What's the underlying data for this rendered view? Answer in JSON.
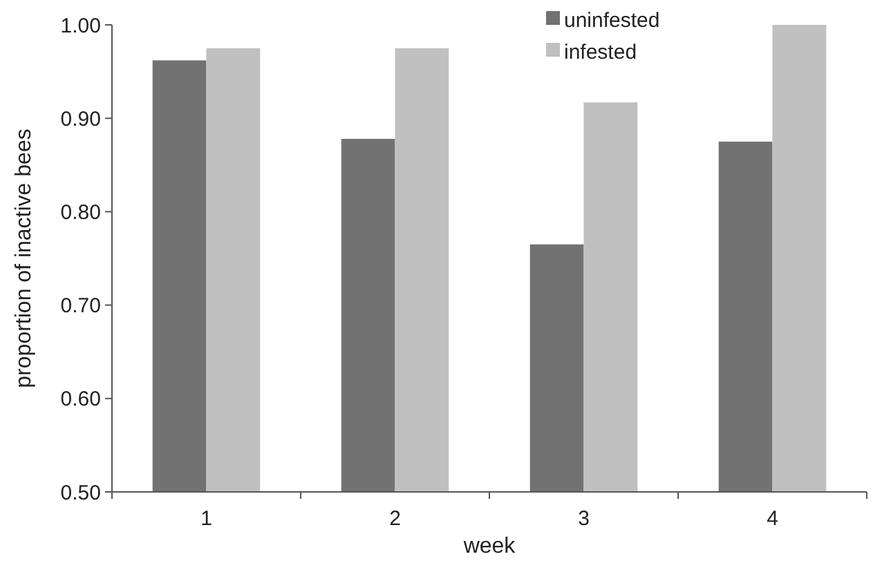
{
  "chart_data": {
    "type": "bar",
    "xlabel": "week",
    "ylabel": "proportion of inactive bees",
    "categories": [
      "1",
      "2",
      "3",
      "4"
    ],
    "series": [
      {
        "name": "uninfested",
        "color": "#727272",
        "values": [
          0.962,
          0.878,
          0.765,
          0.875
        ]
      },
      {
        "name": "infested",
        "color": "#c0c0c0",
        "values": [
          0.975,
          0.975,
          0.917,
          1.0
        ]
      }
    ],
    "ylim": [
      0.5,
      1.0
    ],
    "yticks": [
      {
        "value": 0.5,
        "label": "0.50"
      },
      {
        "value": 0.6,
        "label": "0.60"
      },
      {
        "value": 0.7,
        "label": "0.70"
      },
      {
        "value": 0.8,
        "label": "0.80"
      },
      {
        "value": 0.9,
        "label": "0.90"
      },
      {
        "value": 1.0,
        "label": "1.00"
      }
    ],
    "grid": false,
    "legend": "top"
  }
}
